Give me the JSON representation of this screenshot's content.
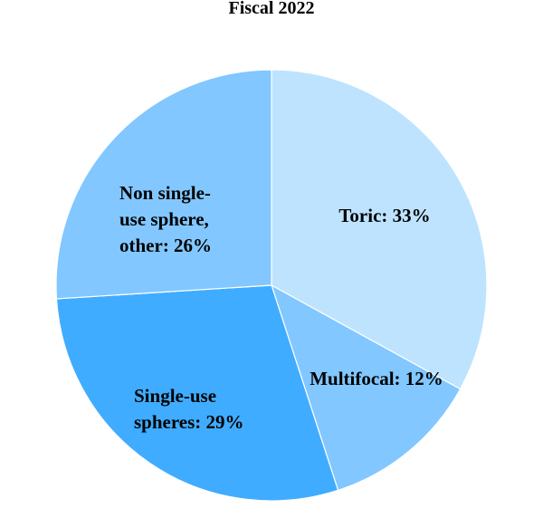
{
  "chart_data": {
    "type": "pie",
    "title": "Fiscal 2022",
    "unit": "%",
    "slices": [
      {
        "name": "Toric",
        "value": 33,
        "color": "#BDE3FF",
        "label_lines": [
          "Toric: 33%"
        ]
      },
      {
        "name": "Multifocal",
        "value": 12,
        "color": "#82C7FF",
        "label_lines": [
          "Multifocal: 12%"
        ]
      },
      {
        "name": "Single-use spheres",
        "value": 29,
        "color": "#40ACFF",
        "label_lines": [
          "Single-use",
          "spheres: 29%"
        ]
      },
      {
        "name": "Non single-use sphere, other",
        "value": 26,
        "color": "#82C7FF",
        "label_lines": [
          "Non single-",
          "use sphere,",
          "other: 26%"
        ]
      }
    ]
  }
}
